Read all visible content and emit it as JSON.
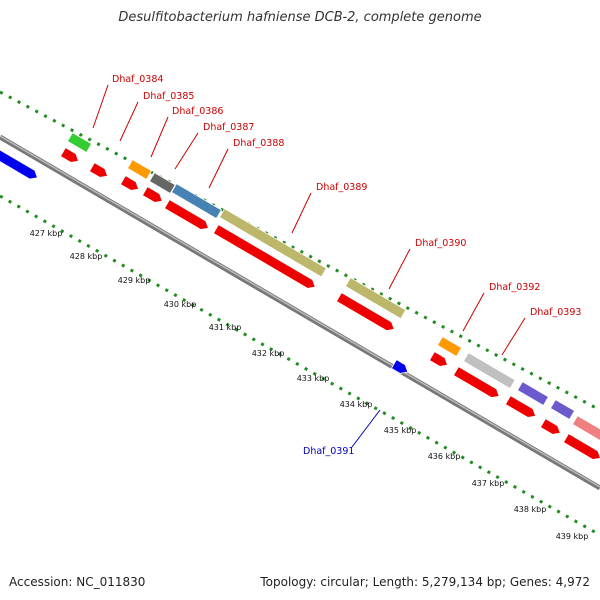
{
  "title": "Desulfitobacterium hafniense DCB-2, complete genome",
  "footer": {
    "accession": "Accession: NC_011830",
    "topology": "Topology: circular; Length: 5,279,134 bp; Genes: 4,972"
  },
  "colors": {
    "label_red": "#cc0000",
    "label_blue": "#0000bb",
    "dots": "#228b22",
    "backbone": "#888888"
  },
  "tick_labels": [
    "427 kbp",
    "428 kbp",
    "429 kbp",
    "430 kbp",
    "431 kbp",
    "432 kbp",
    "433 kbp",
    "434 kbp",
    "435 kbp",
    "436 kbp",
    "437 kbp",
    "438 kbp",
    "439 kbp"
  ],
  "gene_labels": [
    {
      "text": "Dhaf_0384",
      "color": "#cc0000"
    },
    {
      "text": "Dhaf_0385",
      "color": "#cc0000"
    },
    {
      "text": "Dhaf_0386",
      "color": "#cc0000"
    },
    {
      "text": "Dhaf_0387",
      "color": "#cc0000"
    },
    {
      "text": "Dhaf_0388",
      "color": "#cc0000"
    },
    {
      "text": "Dhaf_0389",
      "color": "#cc0000"
    },
    {
      "text": "Dhaf_0390",
      "color": "#cc0000"
    },
    {
      "text": "Dhaf_0392",
      "color": "#cc0000"
    },
    {
      "text": "Dhaf_0393",
      "color": "#cc0000"
    },
    {
      "text": "Dhaf_0391",
      "color": "#0000bb"
    }
  ],
  "feature_colors": {
    "cds": "#ee0000",
    "green": "#33cc33",
    "orange": "#ff9900",
    "gray": "#666666",
    "steelblue": "#4682b4",
    "khaki": "#bdb76b",
    "silver": "#c0c0c0",
    "slate": "#6a5acd",
    "salmon": "#f08080",
    "blue": "#0000ee"
  }
}
